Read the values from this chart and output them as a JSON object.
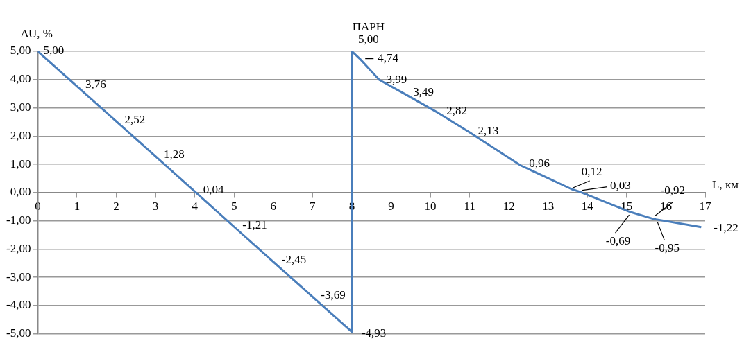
{
  "chart_data": {
    "type": "line",
    "xlabel": "L, км",
    "ylabel": "ΔU, %",
    "annotations": [
      {
        "text": "ПАРН",
        "x": 8,
        "y": 5
      }
    ],
    "series": [
      {
        "color": "#4a7ebb",
        "x": [
          0,
          1,
          2,
          3,
          4,
          5,
          6,
          7,
          8,
          8,
          8.2,
          8.7,
          9.35,
          10.2,
          11,
          12.3,
          13.6,
          13.8,
          15.1,
          15.65,
          15.75,
          16.9
        ],
        "values": [
          5,
          3.76,
          2.52,
          1.28,
          0.04,
          -1.21,
          -2.45,
          -3.69,
          -4.93,
          5,
          4.74,
          3.99,
          3.49,
          2.82,
          2.13,
          0.96,
          0.12,
          0.03,
          -0.69,
          -0.92,
          -0.95,
          -1.22
        ],
        "value_labels": [
          "5,00",
          "3,76",
          "2,52",
          "1,28",
          "0,04",
          "-1,21",
          "-2,45",
          "-3,69",
          "-4,93",
          "5,00",
          "4,74",
          "3,99",
          "3,49",
          "2,82",
          "2,13",
          "0,96",
          "0,12",
          "0,03",
          "-0,69",
          "-0,92",
          "-0,95",
          "-1,22"
        ]
      }
    ],
    "xlim": [
      0,
      17
    ],
    "xticks": [
      0,
      1,
      2,
      3,
      4,
      5,
      6,
      7,
      8,
      9,
      10,
      11,
      12,
      13,
      14,
      15,
      16,
      17
    ],
    "ylim": [
      -5,
      5
    ],
    "yticks": [
      {
        "value": -5,
        "label": "-5,00"
      },
      {
        "value": -4,
        "label": "-4,00"
      },
      {
        "value": -3,
        "label": "-3,00"
      },
      {
        "value": -2,
        "label": "-2,00"
      },
      {
        "value": -1,
        "label": "-1,00"
      },
      {
        "value": 0,
        "label": "0,00"
      },
      {
        "value": 1,
        "label": "1,00"
      },
      {
        "value": 2,
        "label": "2,00"
      },
      {
        "value": 3,
        "label": "3,00"
      },
      {
        "value": 4,
        "label": "4,00"
      },
      {
        "value": 5,
        "label": "5,00"
      }
    ],
    "grid": "y",
    "marker": "none",
    "line_style": "solid"
  }
}
